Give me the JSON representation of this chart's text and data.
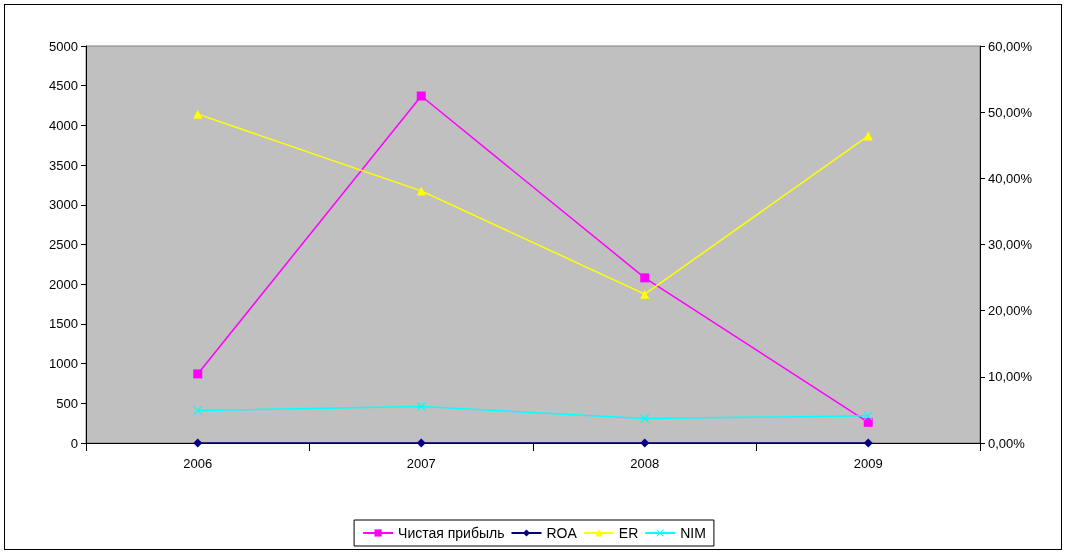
{
  "chart_data": {
    "type": "line",
    "categories": [
      "2006",
      "2007",
      "2008",
      "2009"
    ],
    "series": [
      {
        "name": "Чистая прибыль",
        "color": "#ff00ff",
        "marker": "square",
        "values": [
          870,
          4370,
          2080,
          260
        ]
      },
      {
        "name": "ROA",
        "color": "#000080",
        "marker": "diamond",
        "axis": "y2",
        "values": [
          0,
          0,
          0,
          0
        ]
      },
      {
        "name": "ER",
        "color": "#ffff00",
        "marker": "triangle",
        "axis": "y2",
        "values": [
          49.7,
          38.1,
          22.5,
          46.4
        ]
      },
      {
        "name": "NIM",
        "color": "#00ffff",
        "marker": "cross",
        "axis": "y2",
        "values": [
          4.9,
          5.5,
          3.7,
          4.1
        ]
      }
    ],
    "ylim": [
      0,
      5000
    ],
    "yticks": [
      0,
      500,
      1000,
      1500,
      2000,
      2500,
      3000,
      3500,
      4000,
      4500,
      5000
    ],
    "y2lim": [
      0,
      60
    ],
    "y2ticks": [
      {
        "value": 0,
        "label": "0,00%"
      },
      {
        "value": 10,
        "label": "10,00%"
      },
      {
        "value": 20,
        "label": "20,00%"
      },
      {
        "value": 30,
        "label": "30,00%"
      },
      {
        "value": 40,
        "label": "40,00%"
      },
      {
        "value": 50,
        "label": "50,00%"
      },
      {
        "value": 60,
        "label": "60,00%"
      }
    ],
    "grid": false,
    "legend": "bottom",
    "line_style": "solid"
  }
}
